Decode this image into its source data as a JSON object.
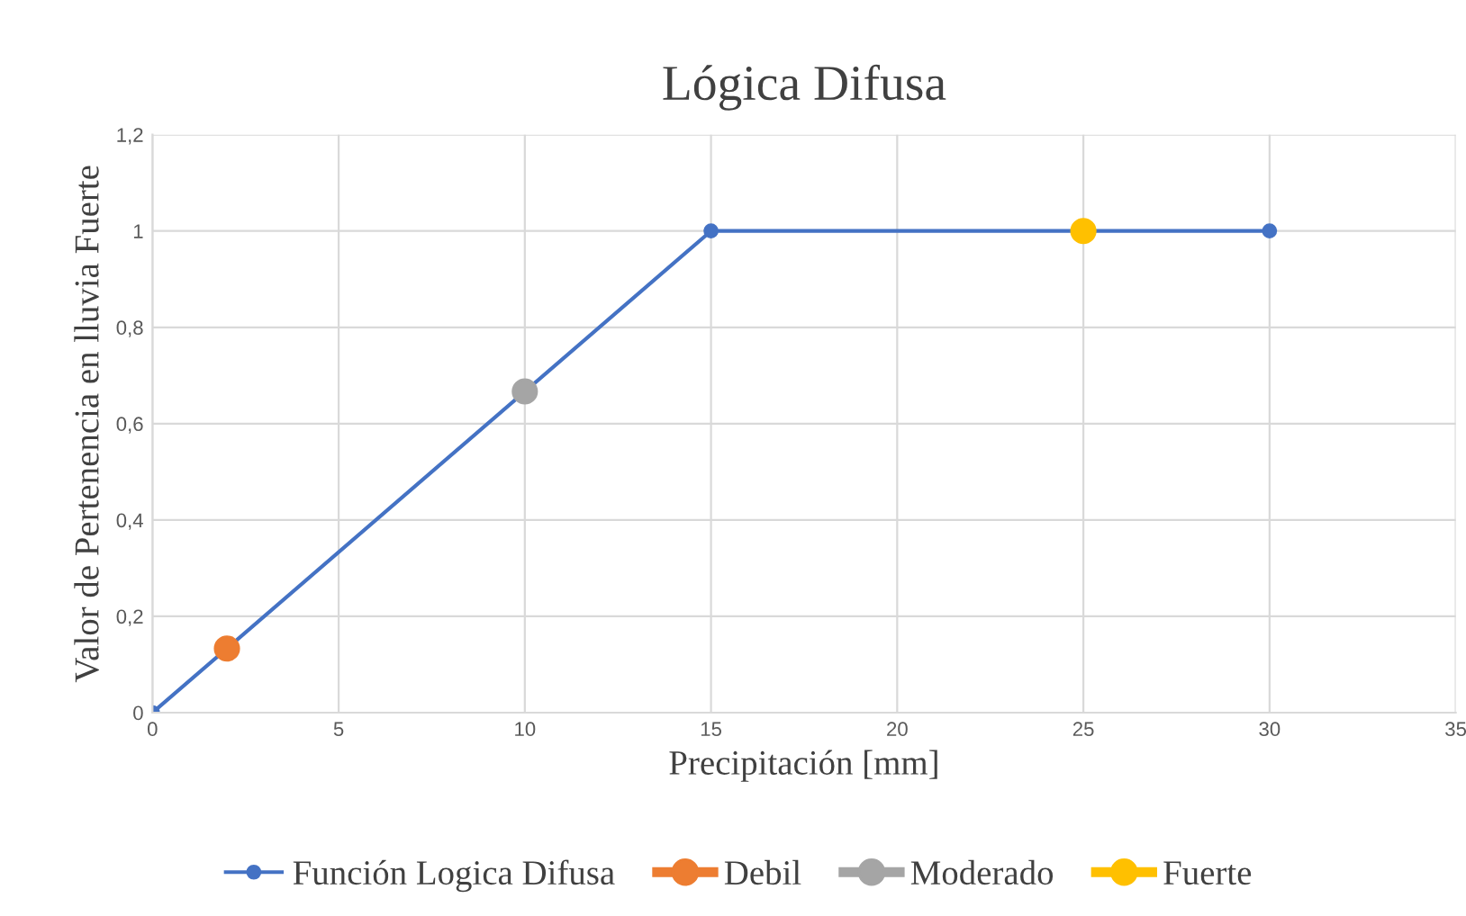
{
  "chart_data": {
    "type": "line",
    "title": "Lógica Difusa",
    "xlabel": "Precipitación [mm]",
    "ylabel": "Valor de Pertenencia en lluvia Fuerte",
    "series": [
      {
        "name": "Función Logica Difusa",
        "color": "#4472c4",
        "x": [
          0,
          15,
          30
        ],
        "values": [
          0,
          1,
          1
        ],
        "marker": "circle"
      },
      {
        "name": "Debil",
        "type": "scatter",
        "color": "#ed7d31",
        "x": [
          2
        ],
        "values": [
          0.133
        ],
        "marker": "circle"
      },
      {
        "name": "Moderado",
        "type": "scatter",
        "color": "#a5a5a5",
        "x": [
          10
        ],
        "values": [
          0.667
        ],
        "marker": "circle"
      },
      {
        "name": "Fuerte",
        "type": "scatter",
        "color": "#ffc000",
        "x": [
          25
        ],
        "values": [
          1
        ],
        "marker": "circle"
      }
    ],
    "xlim": [
      0,
      35
    ],
    "xticks": [
      0,
      5,
      10,
      15,
      20,
      25,
      30,
      35
    ],
    "ylim": [
      0,
      1.2
    ],
    "yticks": [
      0,
      {
        "value": 0.2,
        "label": "0,2"
      },
      {
        "value": 0.4,
        "label": "0,4"
      },
      {
        "value": 0.6,
        "label": "0,6"
      },
      {
        "value": 0.8,
        "label": "0,8"
      },
      1,
      {
        "value": 1.2,
        "label": "1,2"
      }
    ],
    "grid": true,
    "legend": "bottom"
  }
}
